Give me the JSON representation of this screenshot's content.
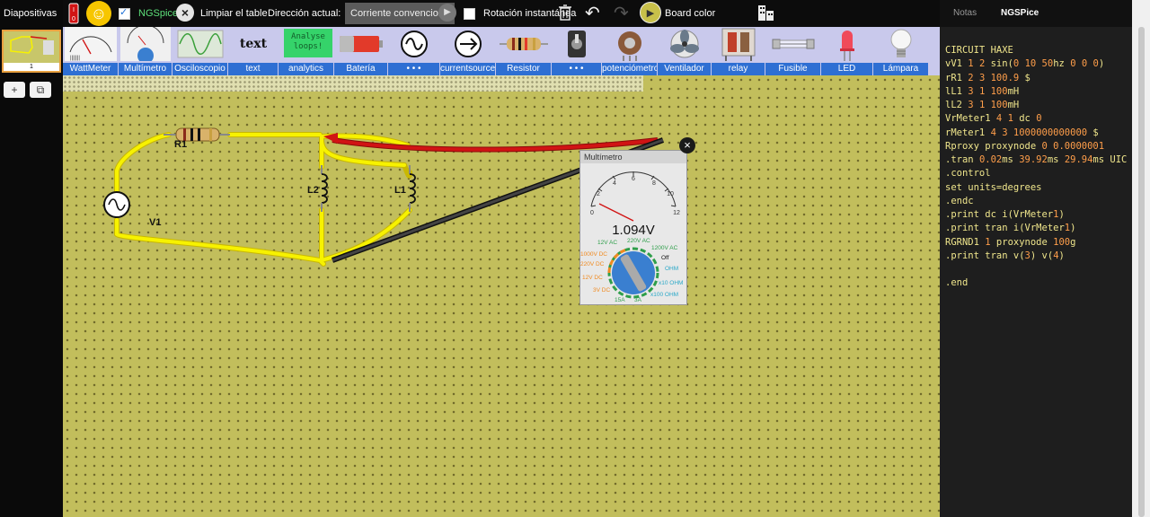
{
  "sidebar": {
    "title": "Diapositivas",
    "slide_number": "1",
    "add_label": "+",
    "copy_label": "⧉"
  },
  "toolbar": {
    "ngspice_label": "NGSpice",
    "clear_label": "Limpiar el tablero",
    "direction_label": "Dirección actual:",
    "direction_value": "Corriente convencional",
    "rotation_label": "Rotación instantánea",
    "board_color_label": "Board color"
  },
  "palette": [
    {
      "label": "WattMeter",
      "icon": "wattmeter-icon"
    },
    {
      "label": "Multímetro",
      "icon": "multimeter-icon"
    },
    {
      "label": "Osciloscopio",
      "icon": "oscilloscope-icon"
    },
    {
      "label": "text",
      "icon": "text-icon",
      "thumb_text": "text"
    },
    {
      "label": "analytics",
      "icon": "analytics-icon",
      "thumb_text": "Analyse\nloops!"
    },
    {
      "label": "Batería",
      "icon": "battery-icon"
    },
    {
      "label": "• • •",
      "icon": "ac-source-icon"
    },
    {
      "label": "currentsource",
      "icon": "current-source-icon"
    },
    {
      "label": "Resistor",
      "icon": "resistor-icon"
    },
    {
      "label": "• • •",
      "icon": "switch-icon"
    },
    {
      "label": "potenciómetro",
      "icon": "potentiometer-icon"
    },
    {
      "label": "Ventilador",
      "icon": "fan-icon"
    },
    {
      "label": "relay",
      "icon": "relay-icon"
    },
    {
      "label": "Fusible",
      "icon": "fuse-icon"
    },
    {
      "label": "LED",
      "icon": "led-icon"
    },
    {
      "label": "Lámpara",
      "icon": "lamp-icon"
    }
  ],
  "circuit": {
    "resistor_label": "R1",
    "source_label": "V1",
    "inductor_labels": [
      "L2",
      "L1"
    ]
  },
  "multimeter": {
    "title": "Multímetro",
    "reading": "1.094V",
    "scale_ticks": [
      "0",
      "2",
      "4",
      "6",
      "8",
      "10",
      "12"
    ],
    "ranges_left": [
      "12V AC",
      "1000V DC",
      "220V DC",
      "12V DC",
      "3V DC"
    ],
    "ranges_top": [
      "220V AC",
      "1200V AC",
      "Off"
    ],
    "ranges_right": [
      "OHM",
      "x10 OHM",
      "x100 OHM"
    ],
    "ranges_bottom": [
      "15A",
      "3A"
    ]
  },
  "right_panel": {
    "tabs": [
      "Notas",
      "NGSPice"
    ],
    "code_lines": [
      "CIRCUIT HAXE",
      "vV1 1 2 sin(0 10 50hz 0 0 0)",
      "rR1 2 3 100.9 $",
      "lL1 3 1 100mH",
      "lL2 3 1 100mH",
      "VrMeter1 4 1 dc 0",
      "rMeter1 4 3 1000000000000 $",
      "Rproxy proxynode 0 0.0000001",
      ".tran 0.02ms 39.92ms 29.94ms UIC",
      ".control",
      "set units=degrees",
      ".endc",
      ".print dc i(VrMeter1)",
      ".print tran i(VrMeter1)",
      "RGRND1 1 proxynode 100g",
      ".print tran v(3) v(4)",
      "",
      ".end"
    ]
  },
  "colors": {
    "board": "#c2be5c",
    "palette_bg": "#c9c9ec",
    "palette_label": "#2e6fd3",
    "wire": "#f7f200",
    "probe_red": "#d11414",
    "probe_black": "#333333",
    "code_text": "#f0e68c",
    "code_number": "#ff9e4a"
  }
}
